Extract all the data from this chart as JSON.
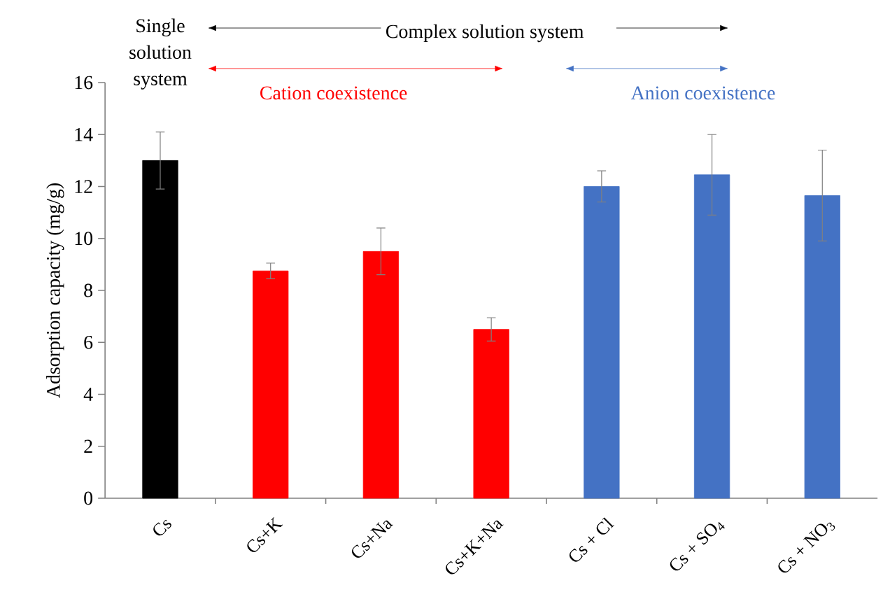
{
  "chart_data": {
    "type": "bar",
    "ylabel": "Adsorption capacity (mg/g)",
    "categories": [
      "Cs",
      "Cs+K",
      "Cs+Na",
      "Cs+K+Na",
      "Cs + Cl",
      "Cs + SO$_{4}$",
      "Cs + NO$_{3}$"
    ],
    "values": [
      13.0,
      8.75,
      9.5,
      6.5,
      12.0,
      12.45,
      11.65
    ],
    "errors": [
      1.1,
      0.3,
      0.9,
      0.45,
      0.6,
      1.55,
      1.75
    ],
    "colors": [
      "#000000",
      "#ff0000",
      "#ff0000",
      "#ff0000",
      "#4472c4",
      "#4472c4",
      "#4472c4"
    ],
    "ylim": [
      0,
      16
    ],
    "yticks": [
      0,
      2,
      4,
      6,
      8,
      10,
      12,
      14,
      16
    ],
    "annotations": [
      "Single solution system",
      "Complex solution system",
      "Cation coexistence",
      "Anion coexistence"
    ],
    "grid": false
  }
}
